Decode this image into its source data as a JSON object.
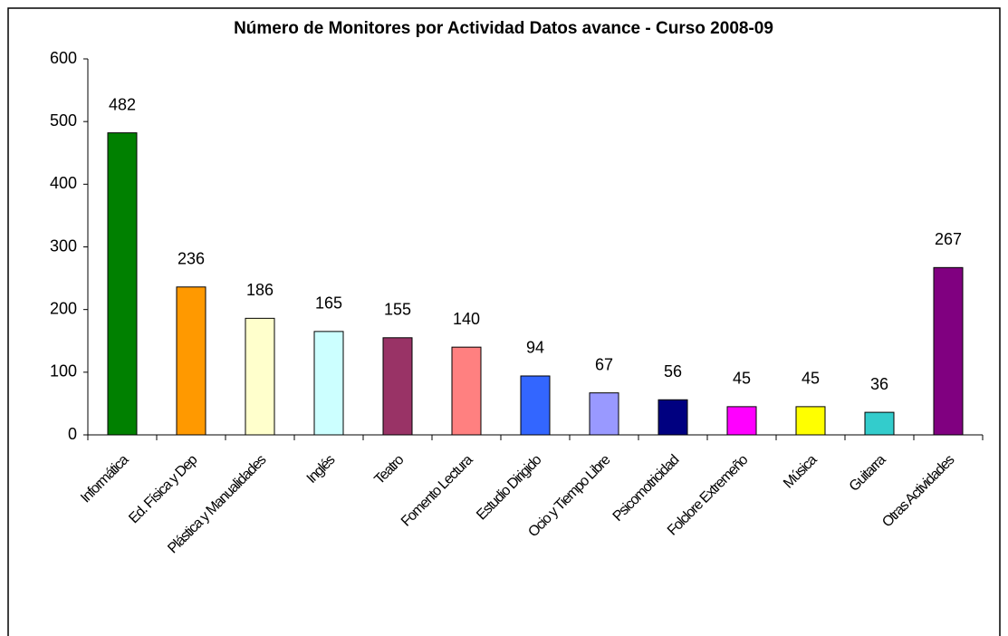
{
  "chart_data": {
    "type": "bar",
    "title": "Número de Monitores por Actividad Datos avance - Curso 2008-09",
    "categories": [
      "Informática",
      "Ed. Física y Dep",
      "Plástica y Manualidades",
      "Inglés",
      "Teatro",
      "Fomento Lectura",
      "Estudio Dirigido",
      "Ocio y Tiempo Libre",
      "Psicomotricidad",
      "Folclore Extremeño",
      "Música",
      "Guitarra",
      "Otras Actividades"
    ],
    "values": [
      482,
      236,
      186,
      165,
      155,
      140,
      94,
      67,
      56,
      45,
      45,
      36,
      267
    ],
    "colors": [
      "#008000",
      "#ff9900",
      "#ffffcc",
      "#ccffff",
      "#993366",
      "#ff8080",
      "#3366ff",
      "#9999ff",
      "#000080",
      "#ff00ff",
      "#ffff00",
      "#33cccc",
      "#800080"
    ],
    "ylim": [
      0,
      600
    ],
    "yticks": [
      0,
      100,
      200,
      300,
      400,
      500,
      600
    ],
    "grid": false
  }
}
